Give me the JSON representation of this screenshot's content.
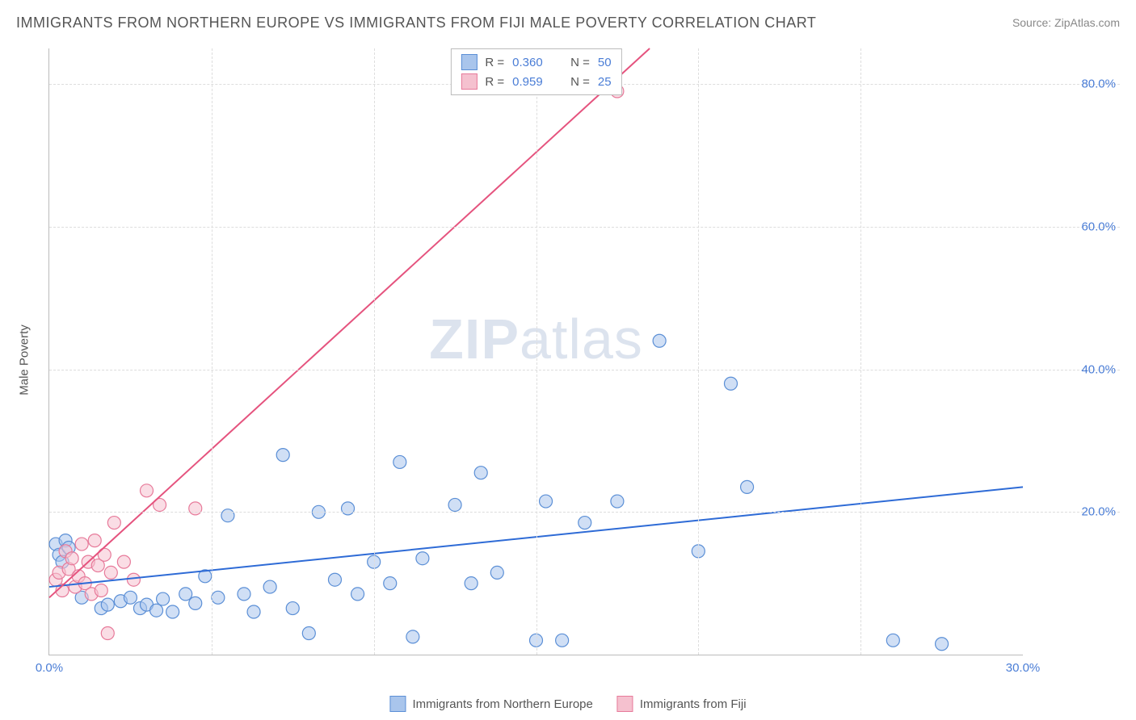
{
  "title": "IMMIGRANTS FROM NORTHERN EUROPE VS IMMIGRANTS FROM FIJI MALE POVERTY CORRELATION CHART",
  "source": "Source: ZipAtlas.com",
  "ylabel": "Male Poverty",
  "watermark_bold": "ZIP",
  "watermark_rest": "atlas",
  "chart": {
    "type": "scatter",
    "xlim": [
      0,
      30
    ],
    "ylim": [
      0,
      85
    ],
    "xticks": [
      0,
      30
    ],
    "xtick_labels": [
      "0.0%",
      "30.0%"
    ],
    "yticks": [
      20,
      40,
      60,
      80
    ],
    "ytick_labels": [
      "20.0%",
      "40.0%",
      "60.0%",
      "80.0%"
    ],
    "vgrid_at": [
      5,
      10,
      15,
      20,
      25
    ],
    "background_color": "#ffffff",
    "grid_color": "#dddddd",
    "axis_color": "#bbbbbb",
    "tick_label_color": "#4a7dd6",
    "marker_radius": 8,
    "marker_opacity": 0.55,
    "line_width": 2,
    "series": [
      {
        "name": "Immigrants from Northern Europe",
        "color_fill": "#a9c5ec",
        "color_stroke": "#5b8fd6",
        "line_color": "#2e6bd6",
        "R": "0.360",
        "N": "50",
        "trend": {
          "x1": 0,
          "y1": 9.5,
          "x2": 30,
          "y2": 23.5
        },
        "points": [
          [
            0.2,
            15.5
          ],
          [
            0.3,
            14.0
          ],
          [
            0.4,
            13.0
          ],
          [
            0.5,
            16.0
          ],
          [
            0.6,
            15.0
          ],
          [
            1.0,
            8.0
          ],
          [
            1.6,
            6.5
          ],
          [
            1.8,
            7.0
          ],
          [
            2.2,
            7.5
          ],
          [
            2.5,
            8.0
          ],
          [
            2.8,
            6.5
          ],
          [
            3.0,
            7.0
          ],
          [
            3.3,
            6.2
          ],
          [
            3.5,
            7.8
          ],
          [
            3.8,
            6.0
          ],
          [
            4.2,
            8.5
          ],
          [
            4.5,
            7.2
          ],
          [
            4.8,
            11.0
          ],
          [
            5.2,
            8.0
          ],
          [
            5.5,
            19.5
          ],
          [
            6.0,
            8.5
          ],
          [
            6.3,
            6.0
          ],
          [
            6.8,
            9.5
          ],
          [
            7.2,
            28.0
          ],
          [
            7.5,
            6.5
          ],
          [
            8.0,
            3.0
          ],
          [
            8.3,
            20.0
          ],
          [
            8.8,
            10.5
          ],
          [
            9.2,
            20.5
          ],
          [
            9.5,
            8.5
          ],
          [
            10.0,
            13.0
          ],
          [
            10.5,
            10.0
          ],
          [
            10.8,
            27.0
          ],
          [
            11.2,
            2.5
          ],
          [
            11.5,
            13.5
          ],
          [
            12.5,
            21.0
          ],
          [
            13.0,
            10.0
          ],
          [
            13.3,
            25.5
          ],
          [
            13.8,
            11.5
          ],
          [
            15.0,
            2.0
          ],
          [
            15.3,
            21.5
          ],
          [
            15.8,
            2.0
          ],
          [
            16.5,
            18.5
          ],
          [
            17.5,
            21.5
          ],
          [
            18.8,
            44.0
          ],
          [
            20.0,
            14.5
          ],
          [
            21.0,
            38.0
          ],
          [
            21.5,
            23.5
          ],
          [
            26.0,
            2.0
          ],
          [
            27.5,
            1.5
          ]
        ]
      },
      {
        "name": "Immigrants from Fiji",
        "color_fill": "#f5c1cf",
        "color_stroke": "#e77a9a",
        "line_color": "#e5537e",
        "R": "0.959",
        "N": "25",
        "trend": {
          "x1": 0,
          "y1": 8.0,
          "x2": 18.5,
          "y2": 85.0
        },
        "points": [
          [
            0.2,
            10.5
          ],
          [
            0.3,
            11.5
          ],
          [
            0.4,
            9.0
          ],
          [
            0.5,
            14.5
          ],
          [
            0.6,
            12.0
          ],
          [
            0.7,
            13.5
          ],
          [
            0.8,
            9.5
          ],
          [
            0.9,
            11.0
          ],
          [
            1.0,
            15.5
          ],
          [
            1.1,
            10.0
          ],
          [
            1.2,
            13.0
          ],
          [
            1.3,
            8.5
          ],
          [
            1.4,
            16.0
          ],
          [
            1.5,
            12.5
          ],
          [
            1.6,
            9.0
          ],
          [
            1.7,
            14.0
          ],
          [
            1.8,
            3.0
          ],
          [
            1.9,
            11.5
          ],
          [
            2.0,
            18.5
          ],
          [
            2.3,
            13.0
          ],
          [
            2.6,
            10.5
          ],
          [
            3.0,
            23.0
          ],
          [
            3.4,
            21.0
          ],
          [
            4.5,
            20.5
          ],
          [
            17.5,
            79.0
          ]
        ]
      }
    ]
  },
  "legend_top": {
    "r_label": "R =",
    "n_label": "N ="
  },
  "legend_bottom": [
    {
      "label": "Immigrants from Northern Europe",
      "fill": "#a9c5ec",
      "stroke": "#5b8fd6"
    },
    {
      "label": "Immigrants from Fiji",
      "fill": "#f5c1cf",
      "stroke": "#e77a9a"
    }
  ]
}
